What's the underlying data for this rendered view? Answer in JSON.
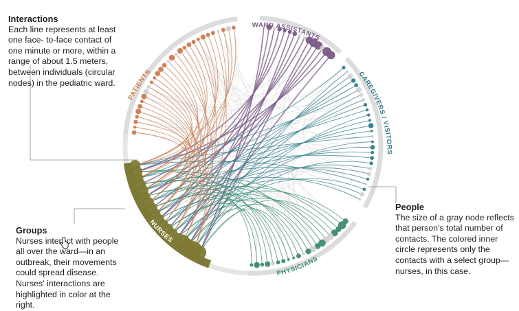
{
  "annotations": {
    "interactions": {
      "title": "Interactions",
      "body": "Each line represents at least one face- to-face contact of one minute or more, within a range of about 1.5 meters, between individuals (circular nodes) in the pediatric ward."
    },
    "groups": {
      "title": "Groups",
      "body": "Nurses interact with people all over the ward—in an outbreak, their movements could spread disease. Nurses' interactions are highlighted in color at the right."
    },
    "people": {
      "title": "People",
      "body": "The size of a gray node reflects that person's total number of contacts. The colored inner circle represents only the contacts with a select group—nurses, in this case."
    }
  },
  "groups": [
    {
      "label": "WARD ASSISTANTS",
      "color": "#7b5a86"
    },
    {
      "label": "CAREGIVERS / VISITORS",
      "color": "#2c7d8a"
    },
    {
      "label": "PHYSICIANS",
      "color": "#3b8c6e"
    },
    {
      "label": "NURSES",
      "color": "#7e7a35"
    },
    {
      "label": "PATIENTS",
      "color": "#cf7a4c"
    }
  ]
}
